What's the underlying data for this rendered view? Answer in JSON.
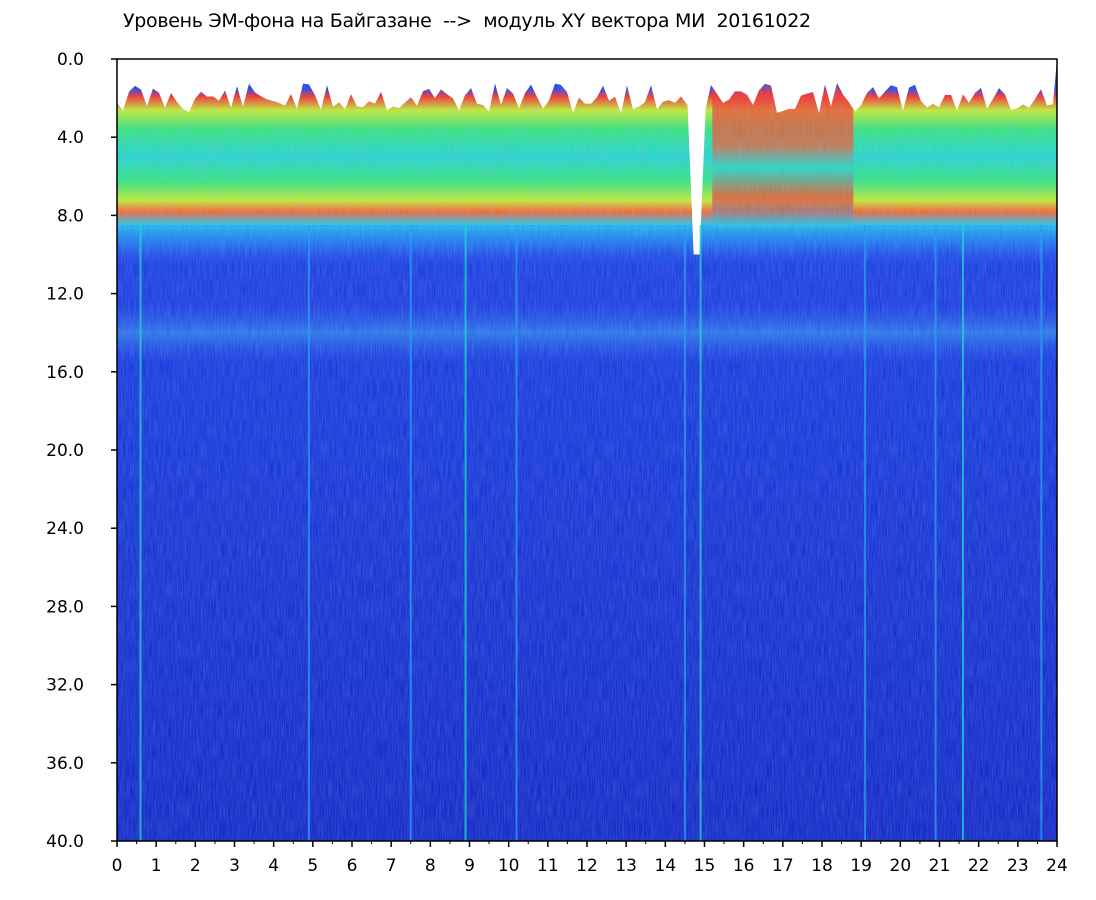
{
  "title": "Уровень ЭМ-фона на Байгазане  -->  модуль XY вектора МИ  20161022",
  "chart_data": {
    "type": "heatmap",
    "title": "Уровень ЭМ-фона на Байгазане  -->  модуль XY вектора МИ  20161022",
    "xlabel": "",
    "ylabel": "",
    "xlim": [
      0,
      24
    ],
    "ylim": [
      0,
      40
    ],
    "y_inverted": true,
    "x_ticks": [
      "0",
      "1",
      "2",
      "3",
      "4",
      "5",
      "6",
      "7",
      "8",
      "9",
      "10",
      "11",
      "12",
      "13",
      "14",
      "15",
      "16",
      "17",
      "18",
      "19",
      "20",
      "21",
      "22",
      "23",
      "24"
    ],
    "y_ticks": [
      "0.0",
      "4.0",
      "8.0",
      "12.0",
      "16.0",
      "20.0",
      "24.0",
      "28.0",
      "32.0",
      "36.0",
      "40.0"
    ],
    "grid": false,
    "colorscale": [
      "#0818c8",
      "#1a5cf0",
      "#18c8e8",
      "#30e870",
      "#c8f020",
      "#ff2818",
      "#ffffff"
    ],
    "bands": [
      {
        "y_range": [
          1.5,
          8.5
        ],
        "level": "high (red/yellow/green/cyan)"
      },
      {
        "y_range": [
          8.5,
          10.5
        ],
        "level": "medium (cyan/blue)"
      },
      {
        "y_range": [
          12.5,
          15.5
        ],
        "level": "medium-low (light blue/cyan)"
      },
      {
        "y_range": [
          15.5,
          40
        ],
        "level": "low (dark blue)"
      }
    ],
    "gaps": [
      {
        "x": 14.8,
        "y_range": [
          0,
          10
        ],
        "note": "data gap (white)"
      }
    ],
    "vertical_streaks_x": [
      0.6,
      4.9,
      7.5,
      8.9,
      10.2,
      14.5,
      14.9,
      19.1,
      20.9,
      21.6,
      23.6
    ]
  }
}
